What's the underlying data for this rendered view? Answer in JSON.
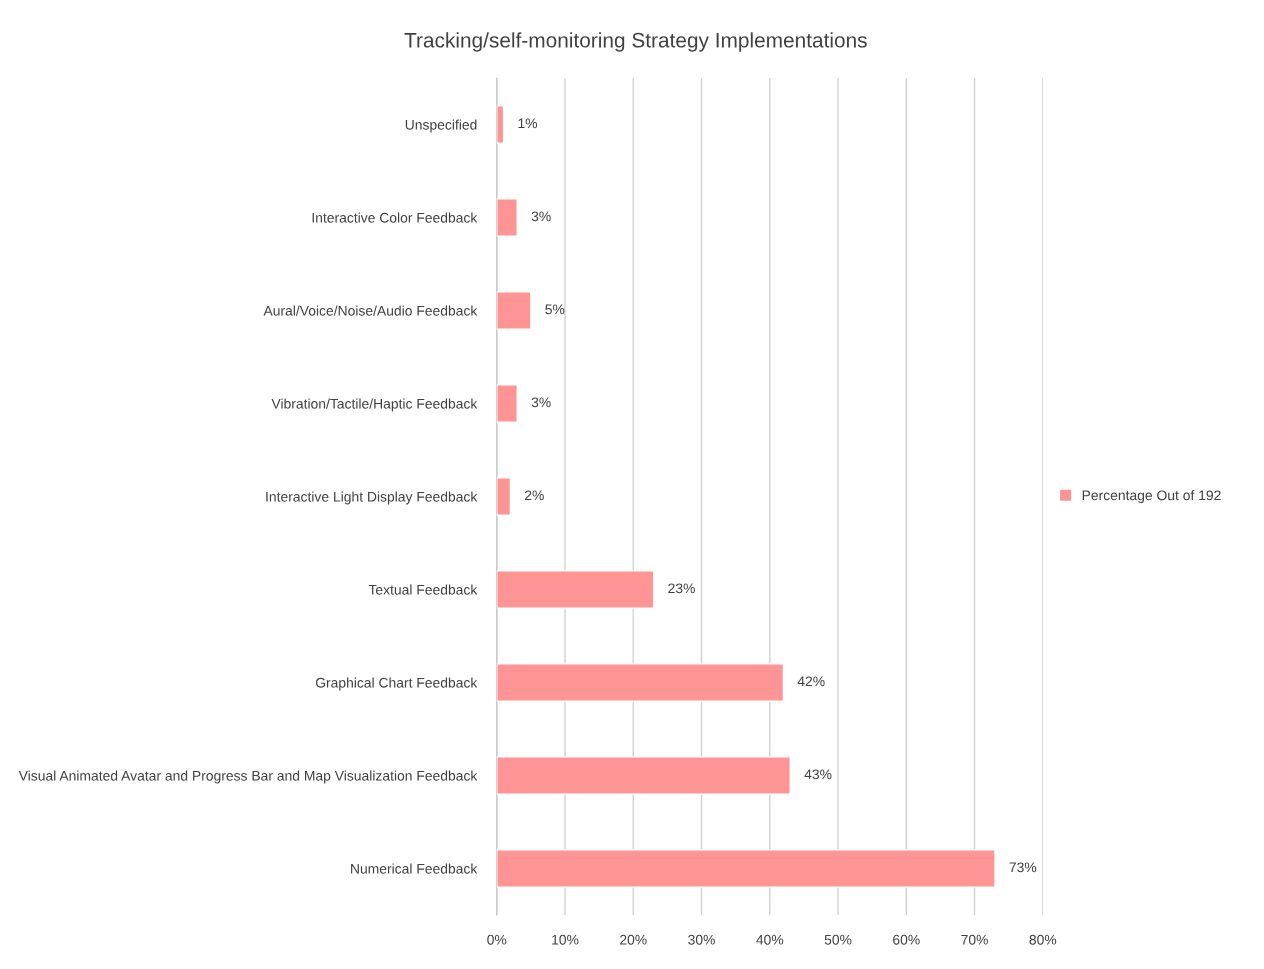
{
  "chart_data": {
    "type": "bar",
    "orientation": "horizontal",
    "title": "Tracking/self-monitoring Strategy Implementations",
    "categories": [
      "Unspecified",
      "Interactive Color Feedback",
      "Aural/Voice/Noise/Audio Feedback",
      "Vibration/Tactile/Haptic Feedback",
      "Interactive Light Display Feedback",
      "Textual Feedback",
      "Graphical Chart Feedback",
      "Visual Animated Avatar and Progress Bar and Map Visualization Feedback",
      "Numerical Feedback"
    ],
    "series": [
      {
        "name": "Percentage Out of 192",
        "color": "#ff9494",
        "values": [
          1,
          3,
          5,
          3,
          2,
          23,
          42,
          43,
          73
        ],
        "value_labels": [
          "1%",
          "3%",
          "5%",
          "3%",
          "2%",
          "23%",
          "42%",
          "43%",
          "73%"
        ]
      }
    ],
    "xlim": [
      0,
      80
    ],
    "xticks": [
      {
        "value": 0,
        "label": "0%"
      },
      {
        "value": 10,
        "label": "10%"
      },
      {
        "value": 20,
        "label": "20%"
      },
      {
        "value": 30,
        "label": "30%"
      },
      {
        "value": 40,
        "label": "40%"
      },
      {
        "value": 50,
        "label": "50%"
      },
      {
        "value": 60,
        "label": "60%"
      },
      {
        "value": 70,
        "label": "70%"
      },
      {
        "value": 80,
        "label": "80%"
      }
    ],
    "grid": "x",
    "legend": "right"
  }
}
